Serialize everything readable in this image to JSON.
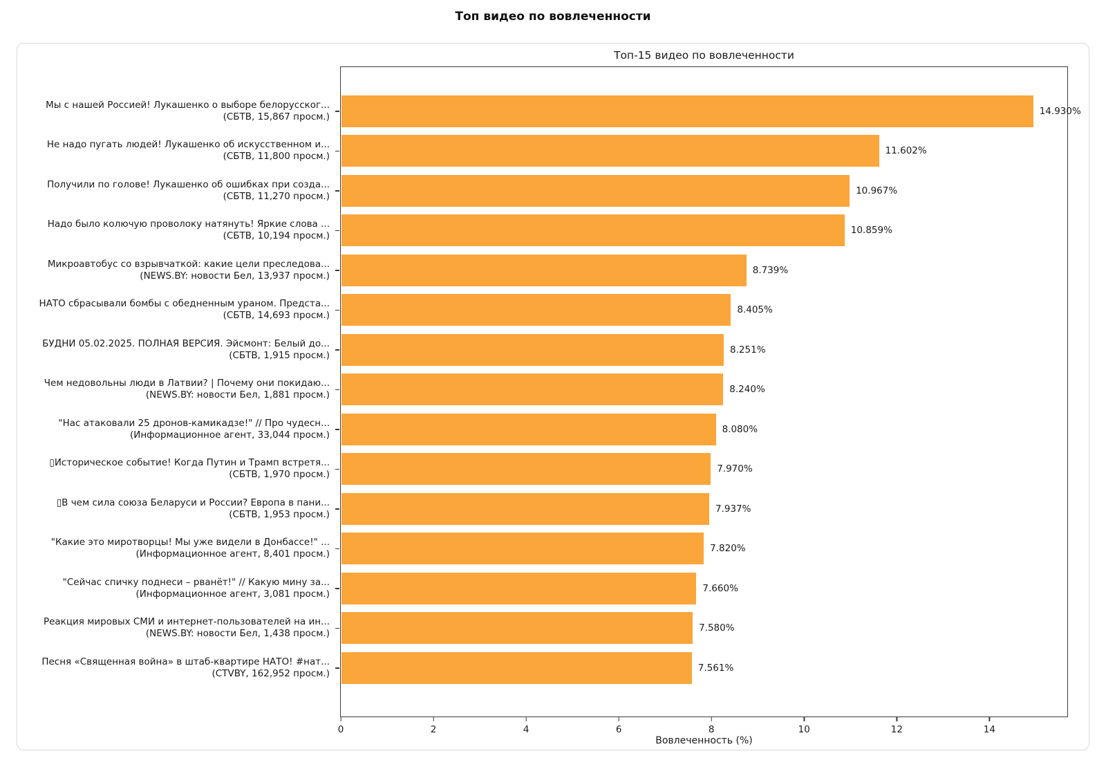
{
  "page": {
    "title": "Топ видео по вовлеченности"
  },
  "chart_data": {
    "type": "bar",
    "orientation": "horizontal",
    "title": "Топ-15 видео по вовлеченности",
    "xlabel": "Вовлеченность (%)",
    "xlim": [
      0,
      15.68
    ],
    "xticks": [
      0,
      2,
      4,
      6,
      8,
      10,
      12,
      14
    ],
    "grid": false,
    "legend": "none",
    "bar_color": "#FAA63B",
    "items": [
      {
        "title": "Мы с нашей Россией! Лукашенко о выборе белорусског...",
        "meta": "(СБТВ, 15,867 просм.)",
        "value": 14.93,
        "value_label": "14.930%"
      },
      {
        "title": "Не надо пугать людей! Лукашенко об искусственном и...",
        "meta": "(СБТВ, 11,800 просм.)",
        "value": 11.602,
        "value_label": "11.602%"
      },
      {
        "title": "Получили по голове! Лукашенко об ошибках при созда...",
        "meta": "(СБТВ, 11,270 просм.)",
        "value": 10.967,
        "value_label": "10.967%"
      },
      {
        "title": "Надо было колючую проволоку натянуть! Яркие слова ...",
        "meta": "(СБТВ, 10,194 просм.)",
        "value": 10.859,
        "value_label": "10.859%"
      },
      {
        "title": "Микроавтобус со взрывчаткой: какие цели преследова...",
        "meta": "(NEWS.BY: новости Бел, 13,937 просм.)",
        "value": 8.739,
        "value_label": "8.739%"
      },
      {
        "title": "НАТО сбрасывали бомбы с обедненным ураном. Предста...",
        "meta": "(СБТВ, 14,693 просм.)",
        "value": 8.405,
        "value_label": "8.405%"
      },
      {
        "title": "БУДНИ 05.02.2025. ПОЛНАЯ ВЕРСИЯ. Эйсмонт: Белый до...",
        "meta": "(СБТВ, 1,915 просм.)",
        "value": 8.251,
        "value_label": "8.251%"
      },
      {
        "title": "Чем недовольны люди в Латвии? | Почему они покидаю...",
        "meta": "(NEWS.BY: новости Бел, 1,881 просм.)",
        "value": 8.24,
        "value_label": "8.240%"
      },
      {
        "title": "\"Нас атаковали 25 дронов-камикадзе!\" // Про чудесн...",
        "meta": "(Информационное агент, 33,044 просм.)",
        "value": 8.08,
        "value_label": "8.080%"
      },
      {
        "title": "▯Историческое событие! Когда Путин и Трамп встретя...",
        "meta": "(СБТВ, 1,970 просм.)",
        "value": 7.97,
        "value_label": "7.970%"
      },
      {
        "title": "▯В чем сила союза Беларуси и России? Европа в пани...",
        "meta": "(СБТВ, 1,953 просм.)",
        "value": 7.937,
        "value_label": "7.937%"
      },
      {
        "title": "\"Какие это миротворцы! Мы уже видели в Донбассе!\" ...",
        "meta": "(Информационное агент, 8,401 просм.)",
        "value": 7.82,
        "value_label": "7.820%"
      },
      {
        "title": "\"Сейчас спичку поднеси – рванёт!\" // Какую мину за...",
        "meta": "(Информационное агент, 3,081 просм.)",
        "value": 7.66,
        "value_label": "7.660%"
      },
      {
        "title": "Реакция мировых СМИ и интернет-пользователей на ин...",
        "meta": "(NEWS.BY: новости Бел, 1,438 просм.)",
        "value": 7.58,
        "value_label": "7.580%"
      },
      {
        "title": "Песня «Священная война» в штаб-квартире НАТО! #нат...",
        "meta": "(CTVBY, 162,952 просм.)",
        "value": 7.561,
        "value_label": "7.561%"
      }
    ]
  }
}
